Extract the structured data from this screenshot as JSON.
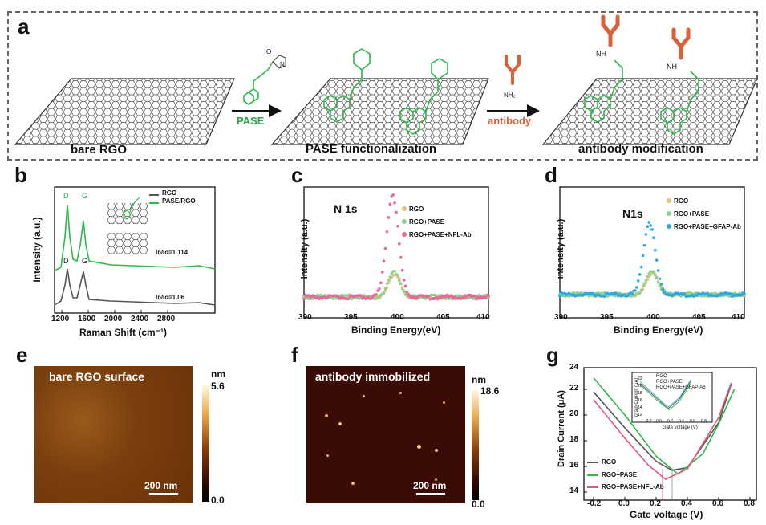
{
  "panel_a": {
    "label": "a",
    "captions": [
      "bare RGO",
      "PASE functionalization",
      "antibody modification"
    ],
    "reagents": {
      "pase": "PASE",
      "antibody": "antibody"
    },
    "chem": {
      "o": "O",
      "n": "N",
      "nh": "NH",
      "nh2": "NH₂"
    }
  },
  "panel_labels": {
    "b": "b",
    "c": "c",
    "d": "d",
    "e": "e",
    "f": "f",
    "g": "g"
  },
  "panel_b": {
    "ylabel": "Intensity (a.u.)",
    "xlabel": "Raman Shift (cm⁻¹)",
    "xticks": [
      "1200",
      "1600",
      "2000",
      "2400",
      "2800"
    ],
    "legend": [
      "RGO",
      "PASE/RGO"
    ],
    "peak_labels": [
      "D",
      "G",
      "D",
      "G"
    ],
    "ratio_top": "Iᴅ/Iɢ=1.114",
    "ratio_bottom": "Iᴅ/Iɢ=1.06",
    "colors": {
      "rgo": "#555555",
      "pase": "#2db84a"
    }
  },
  "panel_c": {
    "title": "N 1s",
    "ylabel": "intensity (a.u.)",
    "xlabel": "Binding Energy(eV)",
    "xticks": [
      "390",
      "395",
      "400",
      "405",
      "410"
    ],
    "legend": [
      "RGO",
      "RGO+PASE",
      "RGO+PASE+NFL-Ab"
    ],
    "colors": [
      "#e3c27f",
      "#8fd18c",
      "#e8679c"
    ]
  },
  "panel_d": {
    "title": "N1s",
    "ylabel": "intensity (a.u.)",
    "xlabel": "Binding Energy(eV)",
    "xticks": [
      "390",
      "395",
      "400",
      "405",
      "410"
    ],
    "legend": [
      "RGO",
      "RGO+PASE",
      "RGO+PASE+GFAP-Ab"
    ],
    "colors": [
      "#e3c27f",
      "#8fd18c",
      "#2aa9e8"
    ]
  },
  "panel_e": {
    "title": "bare RGO surface",
    "scale": "200 nm",
    "unit": "nm",
    "max": "5.6",
    "min": "0.0"
  },
  "panel_f": {
    "title": "antibody immobilized",
    "scale": "200 nm",
    "unit": "nm",
    "max": "18.6",
    "min": "0.0"
  },
  "panel_g": {
    "ylabel": "Drain Current (μA)",
    "xlabel": "Gate voltage (V)",
    "xticks": [
      "-0.2",
      "0.0",
      "0.2",
      "0.4",
      "0.6",
      "0.8"
    ],
    "yticks": [
      "14",
      "16",
      "18",
      "20",
      "22",
      "24"
    ],
    "legend": [
      "RGO",
      "RGO+PASE",
      "RGO+PASE+NFL-Ab"
    ],
    "colors": [
      "#555555",
      "#2db84a",
      "#e0577f"
    ],
    "inset": {
      "ylabel": "Drain Current (μA)",
      "xlabel": "Gate voltage (V)",
      "xticks": [
        "-0.2",
        "0.0",
        "0.2",
        "0.4",
        "0.6",
        "0.8"
      ],
      "yticks": [
        "12",
        "14",
        "16",
        "18",
        "20",
        "22"
      ],
      "legend": [
        "RGO",
        "RGO+PASE",
        "RGO+PASE+GFAP-Ab"
      ],
      "colors": [
        "#555555",
        "#2db84a",
        "#2aa9c8"
      ]
    }
  },
  "chart_data": [
    {
      "type": "line",
      "panel": "b",
      "xlabel": "Raman Shift (cm⁻¹)",
      "ylabel": "Intensity (a.u.)",
      "xlim": [
        1200,
        3000
      ],
      "series": [
        {
          "name": "RGO",
          "peaks": [
            {
              "x": 1340,
              "label": "D"
            },
            {
              "x": 1590,
              "label": "G"
            }
          ],
          "ratio": "Iᴅ/Iɢ=1.06"
        },
        {
          "name": "PASE/RGO",
          "peaks": [
            {
              "x": 1340,
              "label": "D"
            },
            {
              "x": 1590,
              "label": "G"
            }
          ],
          "ratio": "Iᴅ/Iɢ=1.114"
        }
      ]
    },
    {
      "type": "scatter",
      "panel": "c",
      "xlabel": "Binding Energy(eV)",
      "ylabel": "intensity (a.u.)",
      "xlim": [
        390,
        410
      ],
      "series": [
        {
          "name": "RGO",
          "peak_x": 399.8,
          "peak_rel": 0.23
        },
        {
          "name": "RGO+PASE",
          "peak_x": 399.8,
          "peak_rel": 0.25
        },
        {
          "name": "RGO+PASE+NFL-Ab",
          "peak_x": 399.6,
          "peak_rel": 1.0
        }
      ]
    },
    {
      "type": "scatter",
      "panel": "d",
      "xlabel": "Binding Energy(eV)",
      "ylabel": "intensity (a.u.)",
      "xlim": [
        390,
        410
      ],
      "series": [
        {
          "name": "RGO",
          "peak_x": 400.0,
          "peak_rel": 0.25
        },
        {
          "name": "RGO+PASE",
          "peak_x": 400.0,
          "peak_rel": 0.27
        },
        {
          "name": "RGO+PASE+GFAP-Ab",
          "peak_x": 399.7,
          "peak_rel": 0.82
        }
      ]
    },
    {
      "type": "line",
      "panel": "g",
      "xlabel": "Gate voltage (V)",
      "ylabel": "Drain Current (μA)",
      "xlim": [
        -0.3,
        0.8
      ],
      "ylim": [
        14,
        24
      ],
      "series": [
        {
          "name": "RGO",
          "x": [
            -0.2,
            0.0,
            0.2,
            0.3,
            0.4,
            0.6,
            0.68
          ],
          "y": [
            21.8,
            19.0,
            16.4,
            15.7,
            15.9,
            19.4,
            22.4
          ]
        },
        {
          "name": "RGO+PASE",
          "x": [
            -0.2,
            0.0,
            0.2,
            0.34,
            0.5,
            0.6,
            0.7
          ],
          "y": [
            22.9,
            20.0,
            16.8,
            15.4,
            17.0,
            19.3,
            22.0
          ]
        },
        {
          "name": "RGO+PASE+NFL-Ab",
          "x": [
            -0.2,
            0.0,
            0.15,
            0.26,
            0.4,
            0.6,
            0.68
          ],
          "y": [
            21.2,
            18.2,
            16.1,
            15.0,
            15.8,
            19.8,
            22.5
          ]
        }
      ]
    },
    {
      "type": "line",
      "panel": "g-inset",
      "xlabel": "Gate voltage (V)",
      "ylabel": "Drain Current (μA)",
      "xlim": [
        -0.2,
        0.8
      ],
      "ylim": [
        12,
        22
      ],
      "series": [
        {
          "name": "RGO",
          "x": [
            -0.2,
            0.1,
            0.3,
            0.5,
            0.7
          ],
          "y": [
            21.0,
            16.8,
            14.0,
            16.6,
            21.5
          ]
        },
        {
          "name": "RGO+PASE",
          "x": [
            -0.2,
            0.1,
            0.32,
            0.5,
            0.7
          ],
          "y": [
            20.6,
            16.3,
            13.7,
            16.0,
            20.9
          ]
        },
        {
          "name": "RGO+PASE+GFAP-Ab",
          "x": [
            -0.2,
            0.1,
            0.3,
            0.5,
            0.7
          ],
          "y": [
            21.6,
            17.2,
            14.4,
            17.0,
            21.9
          ]
        }
      ]
    }
  ]
}
